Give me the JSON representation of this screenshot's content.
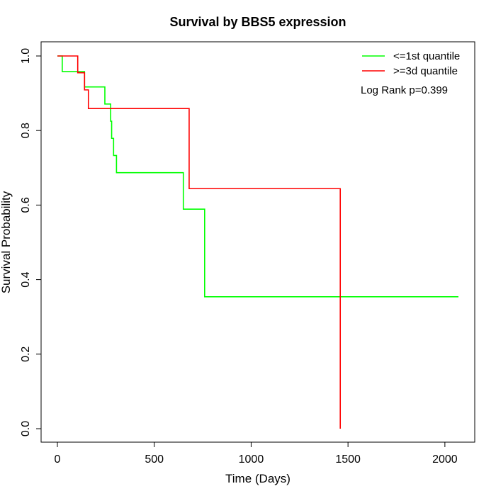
{
  "chart_data": {
    "type": "line",
    "title": "Survival by BBS5 expression",
    "xlabel": "Time (Days)",
    "ylabel": "Survival Probability",
    "xlim": [
      0,
      2070
    ],
    "ylim": [
      0,
      1.0
    ],
    "x_ticks": [
      0,
      500,
      1000,
      1500,
      2000
    ],
    "x_tick_labels": [
      "0",
      "500",
      "1000",
      "1500",
      "2000"
    ],
    "y_ticks": [
      0.0,
      0.2,
      0.4,
      0.6,
      0.8,
      1.0
    ],
    "y_tick_labels": [
      "0.0",
      "0.2",
      "0.4",
      "0.6",
      "0.8",
      "1.0"
    ],
    "grid": false,
    "legend_position": "top-right",
    "annotation": "Log Rank p=0.399",
    "series": [
      {
        "name": "<=1st quantile",
        "color": "#00ff00",
        "step": true,
        "x": [
          0,
          25,
          110,
          140,
          245,
          275,
          280,
          290,
          305,
          320,
          650,
          760,
          770,
          2070
        ],
        "y": [
          1.0,
          0.958,
          0.958,
          0.917,
          0.871,
          0.825,
          0.779,
          0.733,
          0.687,
          0.687,
          0.589,
          0.354,
          0.354,
          0.354
        ]
      },
      {
        "name": ">=3d quantile",
        "color": "#ff0000",
        "step": true,
        "x": [
          0,
          105,
          140,
          150,
          160,
          680,
          1460,
          1460
        ],
        "y": [
          1.0,
          0.955,
          0.909,
          0.909,
          0.859,
          0.644,
          0.644,
          0.0
        ]
      }
    ]
  }
}
